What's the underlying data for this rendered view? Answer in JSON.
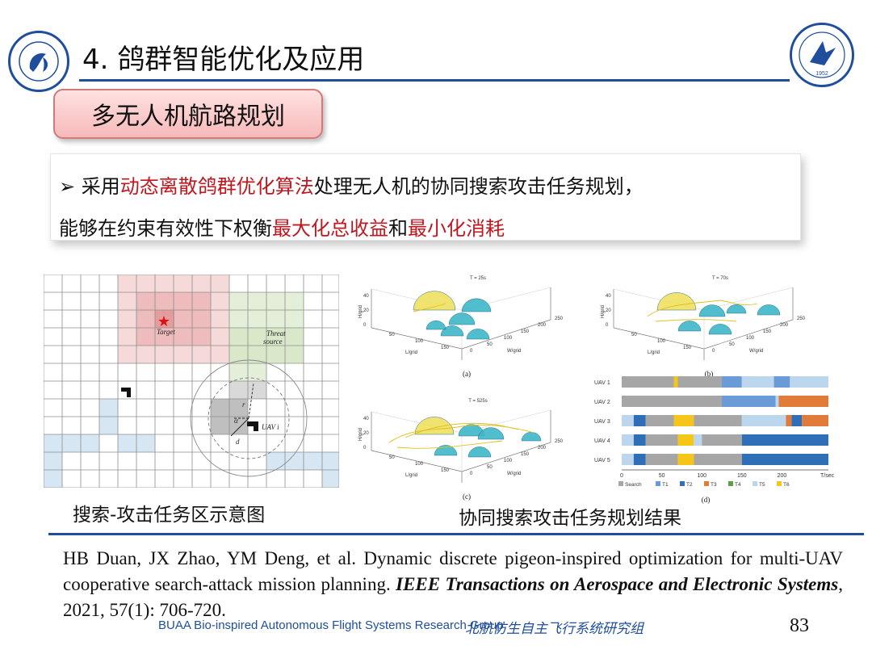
{
  "header": {
    "title": "4. 鸽群智能优化及应用",
    "left_logo_text": "北航仿生自主飞行系统研究组",
    "right_logo_text": "北京航空航天大学",
    "right_logo_sub": "BEIHANG UNIVERSITY",
    "right_logo_year": "1952"
  },
  "section": {
    "label": "多无人机航路规划"
  },
  "bullet": {
    "marker": "➢",
    "line1": [
      {
        "text": " 采用",
        "hl": false
      },
      {
        "text": "动态离散鸽群优化算法",
        "hl": true
      },
      {
        "text": "处理无人机的协同搜索攻击任务规划，",
        "hl": false
      }
    ],
    "line2": [
      {
        "text": "能够在约束有效性下权衡",
        "hl": false
      },
      {
        "text": "最大化总收益",
        "hl": true
      },
      {
        "text": "和",
        "hl": false
      },
      {
        "text": "最小化消耗",
        "hl": true
      }
    ]
  },
  "grid_figure": {
    "target_label": "Target",
    "threat_label_1": "Threat",
    "threat_label_2": "source",
    "uav_label": "UAV i",
    "r_label": "r",
    "alpha_label": "α",
    "d_label": "d",
    "caption": "搜索-攻击任务区示意图"
  },
  "plots": {
    "a": {
      "label": "(a)",
      "time": "T = 25s"
    },
    "b": {
      "label": "(b)",
      "time": "T = 70s"
    },
    "c": {
      "label": "(c)",
      "time": "T = 525s"
    },
    "axis_h": "H/grid",
    "axis_l": "L/grid",
    "axis_w": "W/grid",
    "tick_h": [
      "40",
      "20",
      "0"
    ],
    "tick_l": [
      "50",
      "100",
      "150"
    ],
    "tick_w": [
      "0",
      "50",
      "100",
      "150",
      "200",
      "250"
    ]
  },
  "gantt": {
    "label": "(d)",
    "rows": [
      "UAV 1",
      "UAV 2",
      "UAV 3",
      "UAV 4",
      "UAV 5"
    ],
    "ticks": [
      "0",
      "50",
      "100",
      "150",
      "200"
    ],
    "unit": "T/sec",
    "legend": [
      "Search",
      "T1",
      "T2",
      "T3",
      "T4",
      "T5",
      "T6"
    ],
    "colors": {
      "Search": "#a6a6a6",
      "T1": "#6b9bd6",
      "T2": "#2e6fb8",
      "T3": "#e07b39",
      "T4": "#5b9e4d",
      "T5": "#bcd6ee",
      "T6": "#f5c518"
    },
    "segments": [
      [
        [
          "Search",
          0,
          65
        ],
        [
          "T6",
          65,
          70
        ],
        [
          "Search",
          70,
          125
        ],
        [
          "T1",
          125,
          150
        ],
        [
          "T5",
          150,
          190
        ],
        [
          "T1",
          190,
          210
        ],
        [
          "T5",
          210,
          258
        ]
      ],
      [
        [
          "Search",
          0,
          125
        ],
        [
          "T1",
          125,
          192
        ],
        [
          "T5",
          192,
          196
        ],
        [
          "T3",
          196,
          258
        ]
      ],
      [
        [
          "T5",
          0,
          15
        ],
        [
          "T2",
          15,
          30
        ],
        [
          "Search",
          30,
          65
        ],
        [
          "T6",
          65,
          90
        ],
        [
          "Search",
          90,
          150
        ],
        [
          "T5",
          150,
          205
        ],
        [
          "T3",
          205,
          212
        ],
        [
          "T2",
          212,
          225
        ],
        [
          "T3",
          225,
          258
        ]
      ],
      [
        [
          "T5",
          0,
          15
        ],
        [
          "T2",
          15,
          30
        ],
        [
          "Search",
          30,
          70
        ],
        [
          "T6",
          70,
          90
        ],
        [
          "T5",
          90,
          100
        ],
        [
          "Search",
          100,
          150
        ],
        [
          "T2",
          150,
          258
        ]
      ],
      [
        [
          "T5",
          0,
          15
        ],
        [
          "T2",
          15,
          30
        ],
        [
          "Search",
          30,
          70
        ],
        [
          "T6",
          70,
          90
        ],
        [
          "Search",
          90,
          150
        ],
        [
          "T2",
          150,
          258
        ]
      ]
    ],
    "caption": "协同搜索攻击任务规划结果"
  },
  "reference": {
    "part1": "HB Duan, JX Zhao, YM Deng, et al. Dynamic discrete pigeon-inspired optimization for multi-UAV cooperative search-attack mission planning. ",
    "journal": "IEEE Transactions on Aerospace and Electronic Systems",
    "part2": ", 2021, 57(1): 706-720."
  },
  "footer": {
    "group_en": "BUAA Bio-inspired Autonomous Flight Systems Research Group",
    "group_cn": "北航仿生自主飞行系统研究组",
    "page": "83"
  }
}
